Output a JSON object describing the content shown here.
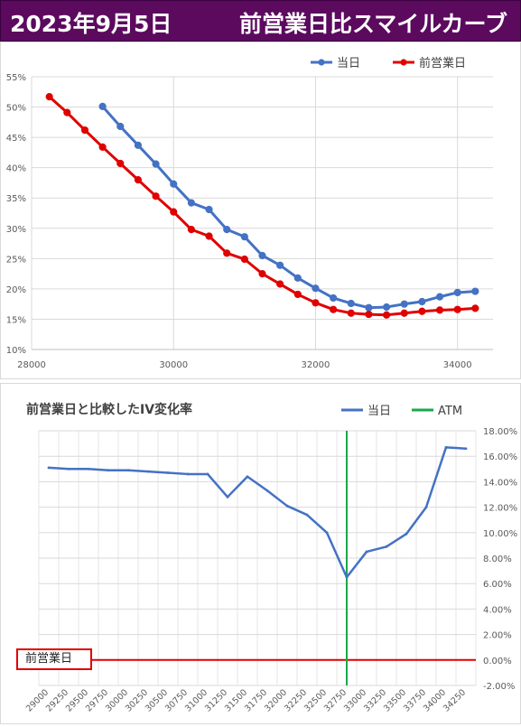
{
  "header": {
    "date": "2023年9月5日",
    "title": "前営業日比スマイルカーブ",
    "bg_color": "#5b0a5e"
  },
  "chart_data": [
    {
      "type": "line",
      "title": "",
      "legend_position": "top-right",
      "grid": true,
      "ylim": [
        0.1,
        0.55
      ],
      "xlim": [
        28000,
        34500
      ],
      "y_ticks": [
        "10%",
        "15%",
        "20%",
        "25%",
        "30%",
        "35%",
        "40%",
        "45%",
        "50%",
        "55%"
      ],
      "x_ticks": [
        "28000",
        "30000",
        "32000",
        "34000"
      ],
      "series": [
        {
          "name": "当日",
          "color": "#4472c4",
          "points": [
            [
              29000,
              0.501
            ],
            [
              29250,
              0.468
            ],
            [
              29500,
              0.437
            ],
            [
              29750,
              0.406
            ],
            [
              30000,
              0.373
            ],
            [
              30250,
              0.342
            ],
            [
              30500,
              0.331
            ],
            [
              30750,
              0.298
            ],
            [
              31000,
              0.286
            ],
            [
              31250,
              0.255
            ],
            [
              31500,
              0.239
            ],
            [
              31750,
              0.218
            ],
            [
              32000,
              0.201
            ],
            [
              32250,
              0.185
            ],
            [
              32500,
              0.176
            ],
            [
              32750,
              0.169
            ],
            [
              33000,
              0.17
            ],
            [
              33250,
              0.175
            ],
            [
              33500,
              0.179
            ],
            [
              33750,
              0.187
            ],
            [
              34000,
              0.194
            ],
            [
              34250,
              0.196
            ]
          ]
        },
        {
          "name": "前営業日",
          "color": "#e00000",
          "points": [
            [
              28250,
              0.517
            ],
            [
              28500,
              0.491
            ],
            [
              28750,
              0.462
            ],
            [
              29000,
              0.434
            ],
            [
              29250,
              0.407
            ],
            [
              29500,
              0.38
            ],
            [
              29750,
              0.353
            ],
            [
              30000,
              0.327
            ],
            [
              30250,
              0.298
            ],
            [
              30500,
              0.287
            ],
            [
              30750,
              0.259
            ],
            [
              31000,
              0.249
            ],
            [
              31250,
              0.225
            ],
            [
              31500,
              0.208
            ],
            [
              31750,
              0.191
            ],
            [
              32000,
              0.177
            ],
            [
              32250,
              0.166
            ],
            [
              32500,
              0.16
            ],
            [
              32750,
              0.158
            ],
            [
              33000,
              0.157
            ],
            [
              33250,
              0.16
            ],
            [
              33500,
              0.163
            ],
            [
              33750,
              0.165
            ],
            [
              34000,
              0.166
            ],
            [
              34250,
              0.168
            ]
          ]
        }
      ]
    },
    {
      "type": "line",
      "title": "前営業日と比較したIV変化率",
      "legend_position": "top-right",
      "grid": true,
      "ylim": [
        -0.02,
        0.18
      ],
      "y_ticks": [
        "-2.00%",
        "0.00%",
        "2.00%",
        "4.00%",
        "6.00%",
        "8.00%",
        "10.00%",
        "12.00%",
        "14.00%",
        "16.00%",
        "18.00%"
      ],
      "categories": [
        "29000",
        "29250",
        "29500",
        "29750",
        "30000",
        "30250",
        "30500",
        "30750",
        "31000",
        "31250",
        "31500",
        "31750",
        "32000",
        "32250",
        "32500",
        "32750",
        "33000",
        "33250",
        "33500",
        "33750",
        "34000",
        "34250"
      ],
      "series": [
        {
          "name": "当日",
          "color": "#4472c4",
          "values": [
            0.151,
            0.15,
            0.15,
            0.149,
            0.149,
            0.148,
            0.147,
            0.146,
            0.146,
            0.128,
            0.144,
            0.133,
            0.121,
            0.114,
            0.1,
            0.065,
            0.085,
            0.089,
            0.099,
            0.12,
            0.167,
            0.166
          ]
        }
      ],
      "atm": {
        "name": "ATM",
        "color": "#1aa84a",
        "category": "32750"
      },
      "baseline": {
        "label": "前営業日",
        "value": 0,
        "color": "#e00000"
      }
    }
  ]
}
